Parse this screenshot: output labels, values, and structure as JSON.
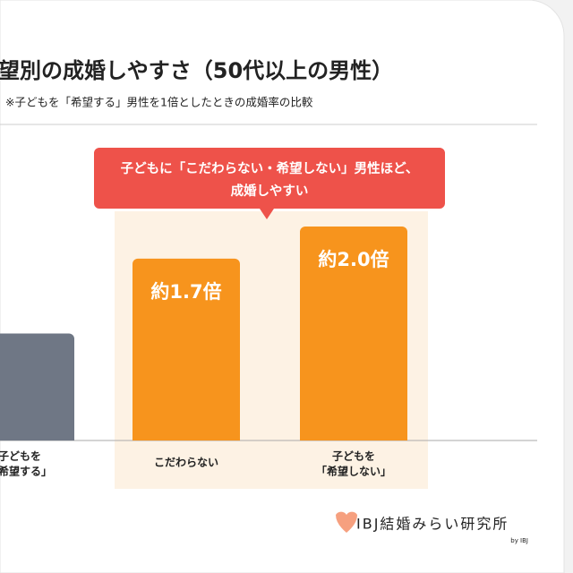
{
  "chart_data": {
    "type": "bar",
    "title": "望別の成婚しやすさ（50代以上の男性）",
    "subtitle": "※子どもを「希望する」男性を1倍としたときの成婚率の比較",
    "annotation": [
      "子どもに「こだわらない・希望しない」男性ほど、",
      "成婚しやすい"
    ],
    "categories": [
      [
        "子どもを",
        "「希望する」"
      ],
      [
        "こだわらない"
      ],
      [
        "子どもを",
        "「希望しない」"
      ]
    ],
    "values": [
      1,
      1.7,
      2.0
    ],
    "value_labels": [
      null,
      "約1.7倍",
      "約2.0倍"
    ],
    "colors": [
      "#6f7785",
      "#f7941d",
      "#f7941d"
    ]
  },
  "logo": {
    "name": "IBJ結婚みらい研究所",
    "by": "by IBJ"
  }
}
